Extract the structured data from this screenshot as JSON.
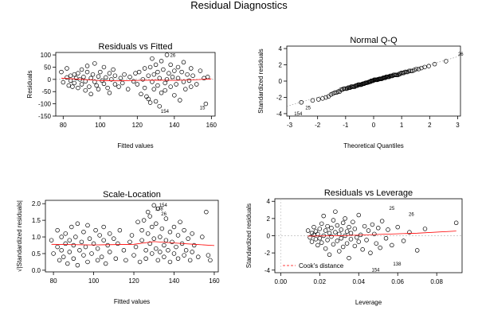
{
  "figure_title": "Residual Diagnostics",
  "chart_data": [
    {
      "id": "rvf",
      "type": "scatter",
      "title": "Residuals vs Fitted",
      "xlabel": "Fitted values",
      "ylabel": "Residuals",
      "xlim": [
        76,
        162
      ],
      "ylim": [
        -150,
        110
      ],
      "xticks": [
        80,
        100,
        120,
        140,
        160
      ],
      "yticks": [
        -150,
        -100,
        -50,
        0,
        50,
        100
      ],
      "reference_line": 0,
      "smoother_color": "#ff0000",
      "points": [
        [
          79,
          30
        ],
        [
          80,
          -12
        ],
        [
          82,
          8
        ],
        [
          82,
          45
        ],
        [
          83,
          -25
        ],
        [
          84,
          -5
        ],
        [
          84,
          15
        ],
        [
          85,
          -30
        ],
        [
          86,
          20
        ],
        [
          86,
          -15
        ],
        [
          87,
          5
        ],
        [
          88,
          -35
        ],
        [
          88,
          25
        ],
        [
          89,
          0
        ],
        [
          90,
          -20
        ],
        [
          90,
          40
        ],
        [
          91,
          10
        ],
        [
          92,
          -45
        ],
        [
          92,
          -8
        ],
        [
          93,
          30
        ],
        [
          93,
          55
        ],
        [
          94,
          -30
        ],
        [
          95,
          5
        ],
        [
          95,
          -60
        ],
        [
          96,
          20
        ],
        [
          97,
          -10
        ],
        [
          97,
          65
        ],
        [
          98,
          -25
        ],
        [
          99,
          12
        ],
        [
          99,
          -40
        ],
        [
          100,
          30
        ],
        [
          101,
          -5
        ],
        [
          102,
          50
        ],
        [
          102,
          -18
        ],
        [
          103,
          8
        ],
        [
          104,
          -35
        ],
        [
          105,
          25
        ],
        [
          105,
          -55
        ],
        [
          106,
          0
        ],
        [
          107,
          40
        ],
        [
          108,
          -20
        ],
        [
          108,
          15
        ],
        [
          110,
          -30
        ],
        [
          111,
          5
        ],
        [
          112,
          -15
        ],
        [
          113,
          20
        ],
        [
          115,
          -40
        ],
        [
          116,
          10
        ],
        [
          118,
          -8
        ],
        [
          119,
          25
        ],
        [
          120,
          -20
        ],
        [
          121,
          30
        ],
        [
          122,
          -60
        ],
        [
          123,
          0
        ],
        [
          124,
          45
        ],
        [
          124,
          -35
        ],
        [
          125,
          -70
        ],
        [
          126,
          15
        ],
        [
          126,
          -80
        ],
        [
          127,
          50
        ],
        [
          127,
          -95
        ],
        [
          128,
          -10
        ],
        [
          128,
          85
        ],
        [
          129,
          20
        ],
        [
          129,
          -40
        ],
        [
          130,
          -90
        ],
        [
          130,
          60
        ],
        [
          131,
          -25
        ],
        [
          131,
          30
        ],
        [
          132,
          -110
        ],
        [
          132,
          5
        ],
        [
          133,
          75
        ],
        [
          133,
          -55
        ],
        [
          134,
          40
        ],
        [
          135,
          -15
        ],
        [
          135,
          -45
        ],
        [
          136,
          100
        ],
        [
          136,
          0
        ],
        [
          137,
          25
        ],
        [
          138,
          -30
        ],
        [
          138,
          60
        ],
        [
          139,
          10
        ],
        [
          140,
          -65
        ],
        [
          140,
          35
        ],
        [
          141,
          -20
        ],
        [
          142,
          50
        ],
        [
          142,
          5
        ],
        [
          143,
          -85
        ],
        [
          144,
          30
        ],
        [
          145,
          -10
        ],
        [
          145,
          70
        ],
        [
          146,
          -40
        ],
        [
          147,
          20
        ],
        [
          148,
          -5
        ],
        [
          149,
          45
        ],
        [
          149,
          -30
        ],
        [
          150,
          15
        ],
        [
          152,
          -20
        ],
        [
          154,
          35
        ],
        [
          156,
          5
        ],
        [
          157,
          -100
        ],
        [
          158,
          10
        ]
      ],
      "smoother": [
        [
          79,
          5
        ],
        [
          90,
          0
        ],
        [
          100,
          -5
        ],
        [
          110,
          -6
        ],
        [
          120,
          -4
        ],
        [
          130,
          -3
        ],
        [
          140,
          -4
        ],
        [
          150,
          -2
        ],
        [
          160,
          2
        ]
      ],
      "annotations": [
        {
          "label": "26",
          "x": 136,
          "y": 102
        },
        {
          "label": "154",
          "x": 131,
          "y": -127
        },
        {
          "label": "15",
          "x": 152,
          "y": -112
        }
      ]
    },
    {
      "id": "qq",
      "type": "scatter",
      "title": "Normal Q-Q",
      "xlabel": "Theoretical Quantiles",
      "ylabel": "Standardized residuals",
      "xlim": [
        -3.1,
        3.1
      ],
      "ylim": [
        -4.3,
        4.3
      ],
      "xticks": [
        -3,
        -2,
        -1,
        0,
        1,
        2,
        3
      ],
      "yticks": [
        -4,
        -2,
        0,
        2,
        4
      ],
      "reference_line": "theoretical",
      "annotations": [
        {
          "label": "154",
          "x": -2.95,
          "y": -3.9
        },
        {
          "label": "25",
          "x": -2.55,
          "y": -3.2
        },
        {
          "label": "26",
          "x": 2.9,
          "y": 3.4
        }
      ]
    },
    {
      "id": "sl",
      "type": "scatter",
      "title": "Scale-Location",
      "xlabel": "Fitted values",
      "ylabel": "√|Standardized residuals|",
      "xlim": [
        76,
        162
      ],
      "ylim": [
        -0.05,
        2.1
      ],
      "xticks": [
        80,
        100,
        120,
        140,
        160
      ],
      "yticks": [
        0.0,
        0.5,
        1.0,
        1.5,
        2.0
      ],
      "smoother_color": "#ff0000",
      "points": [
        [
          79,
          0.9
        ],
        [
          80,
          0.5
        ],
        [
          82,
          0.7
        ],
        [
          82,
          1.2
        ],
        [
          83,
          0.3
        ],
        [
          84,
          0.6
        ],
        [
          84,
          1.0
        ],
        [
          85,
          0.4
        ],
        [
          86,
          0.8
        ],
        [
          86,
          1.1
        ],
        [
          87,
          0.2
        ],
        [
          88,
          0.9
        ],
        [
          88,
          0.55
        ],
        [
          89,
          1.3
        ],
        [
          90,
          0.35
        ],
        [
          90,
          0.75
        ],
        [
          91,
          1.0
        ],
        [
          92,
          0.15
        ],
        [
          92,
          1.4
        ],
        [
          93,
          0.6
        ],
        [
          94,
          0.85
        ],
        [
          95,
          0.45
        ],
        [
          95,
          1.15
        ],
        [
          96,
          0.7
        ],
        [
          97,
          0.25
        ],
        [
          97,
          1.35
        ],
        [
          98,
          0.95
        ],
        [
          99,
          0.5
        ],
        [
          100,
          0.8
        ],
        [
          101,
          1.2
        ],
        [
          102,
          0.3
        ],
        [
          102,
          0.65
        ],
        [
          103,
          1.05
        ],
        [
          104,
          0.4
        ],
        [
          105,
          0.9
        ],
        [
          105,
          1.3
        ],
        [
          106,
          0.2
        ],
        [
          107,
          0.75
        ],
        [
          108,
          1.1
        ],
        [
          108,
          0.55
        ],
        [
          110,
          0.95
        ],
        [
          111,
          0.35
        ],
        [
          112,
          0.8
        ],
        [
          113,
          1.2
        ],
        [
          115,
          0.6
        ],
        [
          116,
          0.3
        ],
        [
          118,
          0.85
        ],
        [
          119,
          1.05
        ],
        [
          120,
          0.45
        ],
        [
          121,
          0.7
        ],
        [
          122,
          1.45
        ],
        [
          123,
          0.25
        ],
        [
          124,
          0.9
        ],
        [
          124,
          1.2
        ],
        [
          125,
          1.5
        ],
        [
          126,
          0.6
        ],
        [
          126,
          0.35
        ],
        [
          127,
          1.1
        ],
        [
          127,
          1.75
        ],
        [
          128,
          0.8
        ],
        [
          128,
          1.62
        ],
        [
          129,
          0.5
        ],
        [
          129,
          1.3
        ],
        [
          130,
          1.95
        ],
        [
          130,
          0.95
        ],
        [
          131,
          0.65
        ],
        [
          131,
          1.4
        ],
        [
          132,
          0.3
        ],
        [
          132,
          1.85
        ],
        [
          133,
          1.0
        ],
        [
          133,
          0.55
        ],
        [
          134,
          1.25
        ],
        [
          135,
          0.75
        ],
        [
          135,
          0.4
        ],
        [
          136,
          1.55
        ],
        [
          136,
          0.9
        ],
        [
          137,
          0.6
        ],
        [
          138,
          1.15
        ],
        [
          138,
          0.25
        ],
        [
          139,
          0.85
        ],
        [
          140,
          1.3
        ],
        [
          140,
          0.5
        ],
        [
          141,
          0.7
        ],
        [
          142,
          1.05
        ],
        [
          142,
          0.35
        ],
        [
          143,
          1.45
        ],
        [
          144,
          0.8
        ],
        [
          145,
          0.45
        ],
        [
          145,
          1.2
        ],
        [
          146,
          0.6
        ],
        [
          147,
          0.95
        ],
        [
          148,
          0.3
        ],
        [
          149,
          1.1
        ],
        [
          149,
          0.55
        ],
        [
          150,
          0.75
        ],
        [
          152,
          0.4
        ],
        [
          154,
          1.0
        ],
        [
          156,
          1.75
        ],
        [
          157,
          0.45
        ],
        [
          158,
          0.3
        ]
      ],
      "smoother": [
        [
          79,
          0.78
        ],
        [
          100,
          0.76
        ],
        [
          120,
          0.78
        ],
        [
          130,
          0.86
        ],
        [
          140,
          0.82
        ],
        [
          150,
          0.78
        ],
        [
          160,
          0.74
        ]
      ],
      "annotations": [
        {
          "label": "154",
          "x": 131,
          "y": 1.98
        },
        {
          "label": "138",
          "x": 129,
          "y": 1.87
        },
        {
          "label": "26",
          "x": 132,
          "y": 1.72
        }
      ]
    },
    {
      "id": "rvl",
      "type": "scatter",
      "title": "Residuals vs Leverage",
      "xlabel": "Leverage",
      "ylabel": "Standardized residuals",
      "xlim": [
        -0.003,
        0.093
      ],
      "ylim": [
        -4.3,
        4.3
      ],
      "xticks": [
        0.0,
        0.02,
        0.04,
        0.06,
        0.08
      ],
      "yticks": [
        -4,
        -2,
        0,
        2,
        4
      ],
      "reference_line": 0,
      "smoother_color": "#ff0000",
      "legend": {
        "label": "Cook's distance",
        "color": "#ff0000",
        "placement": "bottom-left"
      },
      "points": [
        [
          0.014,
          0.6
        ],
        [
          0.015,
          -0.2
        ],
        [
          0.016,
          0.3
        ],
        [
          0.016,
          -0.7
        ],
        [
          0.017,
          0.1
        ],
        [
          0.017,
          1.0
        ],
        [
          0.018,
          -0.4
        ],
        [
          0.018,
          0.5
        ],
        [
          0.019,
          -1.1
        ],
        [
          0.019,
          0.2
        ],
        [
          0.02,
          0.8
        ],
        [
          0.02,
          -0.3
        ],
        [
          0.021,
          1.4
        ],
        [
          0.021,
          -0.8
        ],
        [
          0.022,
          0.0
        ],
        [
          0.022,
          2.3
        ],
        [
          0.023,
          -1.5
        ],
        [
          0.023,
          0.6
        ],
        [
          0.024,
          -0.5
        ],
        [
          0.024,
          1.1
        ],
        [
          0.025,
          0.3
        ],
        [
          0.025,
          -2.2
        ],
        [
          0.026,
          0.9
        ],
        [
          0.026,
          -0.1
        ],
        [
          0.027,
          1.8
        ],
        [
          0.027,
          -1.0
        ],
        [
          0.028,
          0.4
        ],
        [
          0.028,
          2.8
        ],
        [
          0.029,
          -0.6
        ],
        [
          0.029,
          1.2
        ],
        [
          0.03,
          -1.8
        ],
        [
          0.03,
          0.2
        ],
        [
          0.031,
          0.7
        ],
        [
          0.031,
          -0.3
        ],
        [
          0.032,
          1.5
        ],
        [
          0.032,
          -1.3
        ],
        [
          0.033,
          0.0
        ],
        [
          0.033,
          2.0
        ],
        [
          0.034,
          -0.9
        ],
        [
          0.034,
          0.5
        ],
        [
          0.035,
          1.0
        ],
        [
          0.035,
          -2.6
        ],
        [
          0.036,
          0.3
        ],
        [
          0.036,
          -0.4
        ],
        [
          0.037,
          1.6
        ],
        [
          0.038,
          -1.2
        ],
        [
          0.038,
          0.8
        ],
        [
          0.039,
          -0.2
        ],
        [
          0.04,
          2.4
        ],
        [
          0.04,
          -0.7
        ],
        [
          0.041,
          0.1
        ],
        [
          0.042,
          -1.6
        ],
        [
          0.043,
          1.1
        ],
        [
          0.044,
          -0.5
        ],
        [
          0.045,
          0.6
        ],
        [
          0.046,
          -2.0
        ],
        [
          0.047,
          1.3
        ],
        [
          0.048,
          0.2
        ],
        [
          0.049,
          -0.9
        ],
        [
          0.05,
          0.9
        ],
        [
          0.051,
          -1.4
        ],
        [
          0.052,
          1.7
        ],
        [
          0.054,
          -0.3
        ],
        [
          0.055,
          0.7
        ],
        [
          0.057,
          -1.1
        ],
        [
          0.06,
          1.0
        ],
        [
          0.063,
          -0.6
        ],
        [
          0.066,
          0.4
        ],
        [
          0.07,
          -1.7
        ],
        [
          0.074,
          0.8
        ],
        [
          0.09,
          1.5
        ]
      ],
      "smoother": [
        [
          0.014,
          -0.05
        ],
        [
          0.03,
          0.0
        ],
        [
          0.05,
          0.15
        ],
        [
          0.07,
          0.3
        ],
        [
          0.09,
          0.55
        ]
      ],
      "annotations": [
        {
          "label": "25",
          "x": 0.054,
          "y": 3.3
        },
        {
          "label": "26",
          "x": 0.064,
          "y": 2.6
        },
        {
          "label": "138",
          "x": 0.056,
          "y": -3.2
        },
        {
          "label": "154",
          "x": 0.045,
          "y": -3.9
        }
      ]
    }
  ]
}
